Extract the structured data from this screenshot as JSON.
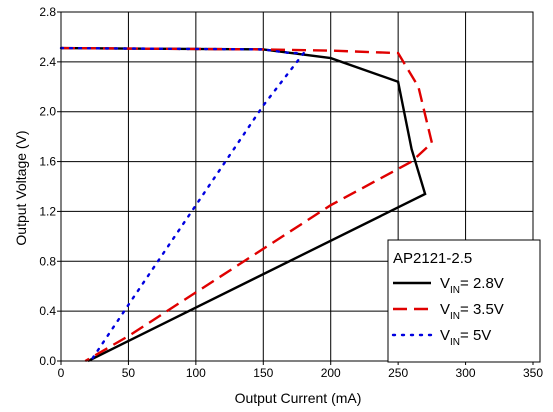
{
  "chart_data": {
    "type": "line",
    "xlabel": "Output Current (mA)",
    "ylabel": "Output Voltage (V)",
    "xlim": [
      0,
      350
    ],
    "ylim": [
      0.0,
      2.8
    ],
    "x_ticks": [
      "0",
      "50",
      "100",
      "150",
      "200",
      "250",
      "300",
      "350"
    ],
    "y_ticks": [
      "0.0",
      "0.4",
      "0.8",
      "1.2",
      "1.6",
      "2.0",
      "2.4",
      "2.8"
    ],
    "grid": true,
    "legend": {
      "title": "AP2121-2.5",
      "placement": "bottom-right"
    },
    "series": [
      {
        "name": "VIN= 2.8V",
        "label_main": "V",
        "label_sub": "IN",
        "label_rest": "= 2.8V",
        "color": "#000000",
        "style": "solid",
        "x": [
          0,
          150,
          200,
          250,
          260,
          270,
          20
        ],
        "y": [
          2.51,
          2.5,
          2.43,
          2.24,
          1.7,
          1.34,
          0.0
        ]
      },
      {
        "name": "VIN= 3.5V",
        "label_main": "V",
        "label_sub": "IN",
        "label_rest": "= 3.5V",
        "color": "#e00000",
        "style": "dashed",
        "x": [
          0,
          150,
          200,
          250,
          265,
          275,
          260,
          200,
          100,
          50,
          18
        ],
        "y": [
          2.51,
          2.5,
          2.49,
          2.47,
          2.2,
          1.75,
          1.6,
          1.25,
          0.55,
          0.2,
          0.0
        ]
      },
      {
        "name": "VIN= 5V",
        "label_main": "V",
        "label_sub": "IN",
        "label_rest": "= 5V",
        "color": "#0000e0",
        "style": "dotted",
        "x": [
          0,
          150,
          170,
          180,
          150,
          100,
          50,
          22
        ],
        "y": [
          2.51,
          2.5,
          2.47,
          2.47,
          2.05,
          1.25,
          0.45,
          0.0
        ]
      }
    ]
  }
}
